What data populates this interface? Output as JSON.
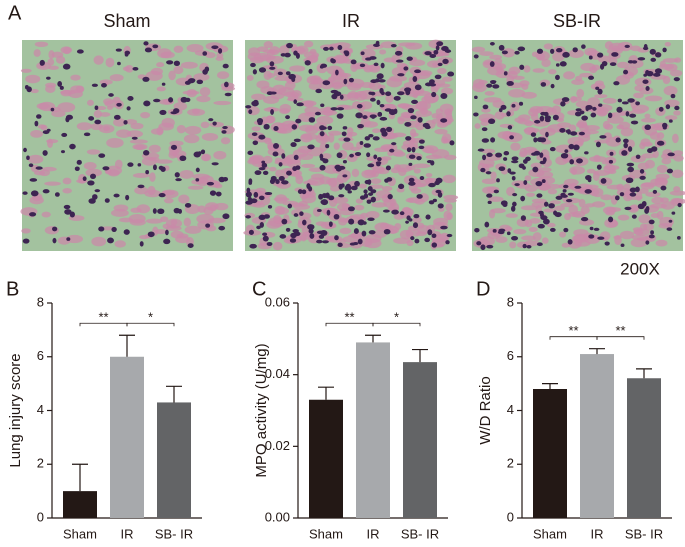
{
  "panel_a": {
    "label": "A",
    "titles": [
      "Sham",
      "IR",
      "SB-IR"
    ],
    "magnification": "200X"
  },
  "chart_data": [
    {
      "type": "bar",
      "panel_label": "B",
      "ylabel": "Lung injury score",
      "categories": [
        "Sham",
        "IR",
        "SB- IR"
      ],
      "values": [
        1.0,
        6.0,
        4.3
      ],
      "errors": [
        1.0,
        0.8,
        0.6
      ],
      "colors": [
        "#231815",
        "#a7a9ac",
        "#636466"
      ],
      "annotations": [
        "**",
        "*"
      ],
      "ylim": [
        0,
        8
      ],
      "yticks": [
        0,
        2,
        4,
        6,
        8
      ]
    },
    {
      "type": "bar",
      "panel_label": "C",
      "ylabel": "MPO activity (U/mg)",
      "categories": [
        "Sham",
        "IR",
        "SB- IR"
      ],
      "values": [
        0.033,
        0.049,
        0.0435
      ],
      "errors": [
        0.0035,
        0.002,
        0.0035
      ],
      "colors": [
        "#231815",
        "#a7a9ac",
        "#636466"
      ],
      "annotations": [
        "**",
        "*"
      ],
      "ylim": [
        0,
        0.06
      ],
      "yticks": [
        {
          "value": 0,
          "label": "0.00"
        },
        0.02,
        0.04,
        0.06
      ]
    },
    {
      "type": "bar",
      "panel_label": "D",
      "ylabel": "W/D Ratio",
      "categories": [
        "Sham",
        "IR",
        "SB- IR"
      ],
      "values": [
        4.8,
        6.1,
        5.2
      ],
      "errors": [
        0.2,
        0.2,
        0.35
      ],
      "colors": [
        "#231815",
        "#a7a9ac",
        "#636466"
      ],
      "annotations": [
        "**",
        "**"
      ],
      "ylim": [
        0,
        8
      ],
      "yticks": [
        0,
        2,
        4,
        6,
        8
      ]
    }
  ]
}
